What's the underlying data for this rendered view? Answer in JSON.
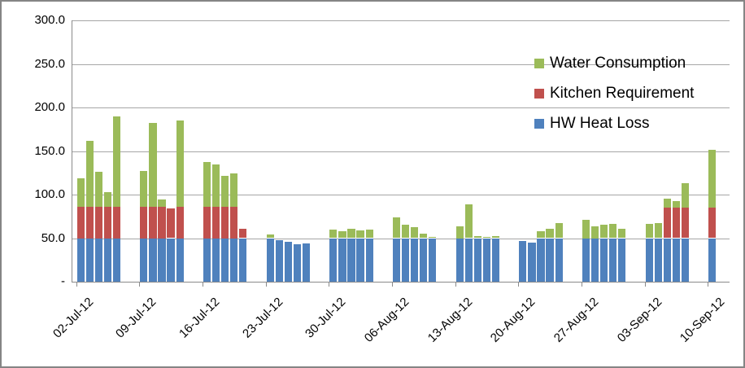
{
  "chart_data": {
    "type": "bar",
    "subtype": "stacked-vertical",
    "title": "",
    "xlabel": "",
    "ylabel": "",
    "y_axis": {
      "min": 0,
      "max": 300,
      "tick_step": 50,
      "tick_labels": [
        "300.0",
        "250.0",
        "200.0",
        "150.0",
        "100.0",
        "50.0",
        "-"
      ],
      "tick_values": [
        300,
        250,
        200,
        150,
        100,
        50,
        0
      ],
      "grid": true
    },
    "x_axis": {
      "tick_labels": [
        "02-Jul-12",
        "09-Jul-12",
        "16-Jul-12",
        "23-Jul-12",
        "30-Jul-12",
        "06-Aug-12",
        "13-Aug-12",
        "20-Aug-12",
        "27-Aug-12",
        "03-Sep-12",
        "10-Sep-12"
      ],
      "days_per_tick": 7,
      "note": "weekday bars only; weekend slots empty"
    },
    "legend": [
      {
        "label": "Water Consumption",
        "color": "#9BBB59",
        "key": "water"
      },
      {
        "label": "Kitchen Requirement",
        "color": "#C0504D",
        "key": "kitchen"
      },
      {
        "label": "HW Heat Loss",
        "color": "#4F81BD",
        "key": "hw"
      }
    ],
    "legend_position": "inside-top-right",
    "stack_order_bottom_to_top": [
      "hw",
      "kitchen",
      "water"
    ],
    "points": [
      {
        "slot": 0,
        "date": "02-Jul-12",
        "hw": 50,
        "kitchen": 36,
        "water": 33
      },
      {
        "slot": 1,
        "date": "03-Jul-12",
        "hw": 50,
        "kitchen": 36,
        "water": 76
      },
      {
        "slot": 2,
        "date": "04-Jul-12",
        "hw": 50,
        "kitchen": 36,
        "water": 40
      },
      {
        "slot": 3,
        "date": "05-Jul-12",
        "hw": 50,
        "kitchen": 36,
        "water": 17
      },
      {
        "slot": 4,
        "date": "06-Jul-12",
        "hw": 50,
        "kitchen": 36,
        "water": 104
      },
      {
        "slot": 7,
        "date": "09-Jul-12",
        "hw": 50,
        "kitchen": 36,
        "water": 41
      },
      {
        "slot": 8,
        "date": "10-Jul-12",
        "hw": 50,
        "kitchen": 36,
        "water": 96
      },
      {
        "slot": 9,
        "date": "11-Jul-12",
        "hw": 50,
        "kitchen": 36,
        "water": 8
      },
      {
        "slot": 10,
        "date": "12-Jul-12",
        "hw": 50,
        "kitchen": 34,
        "water": 0
      },
      {
        "slot": 11,
        "date": "13-Jul-12",
        "hw": 50,
        "kitchen": 36,
        "water": 99
      },
      {
        "slot": 14,
        "date": "16-Jul-12",
        "hw": 50,
        "kitchen": 36,
        "water": 51
      },
      {
        "slot": 15,
        "date": "17-Jul-12",
        "hw": 50,
        "kitchen": 36,
        "water": 49
      },
      {
        "slot": 16,
        "date": "18-Jul-12",
        "hw": 50,
        "kitchen": 36,
        "water": 36
      },
      {
        "slot": 17,
        "date": "19-Jul-12",
        "hw": 50,
        "kitchen": 36,
        "water": 38
      },
      {
        "slot": 18,
        "date": "20-Jul-12",
        "hw": 50,
        "kitchen": 11,
        "water": 0
      },
      {
        "slot": 21,
        "date": "23-Jul-12",
        "hw": 50,
        "kitchen": 0,
        "water": 4
      },
      {
        "slot": 22,
        "date": "24-Jul-12",
        "hw": 48,
        "kitchen": 0,
        "water": 0
      },
      {
        "slot": 23,
        "date": "25-Jul-12",
        "hw": 46,
        "kitchen": 0,
        "water": 0
      },
      {
        "slot": 24,
        "date": "26-Jul-12",
        "hw": 43.5,
        "kitchen": 0,
        "water": 0
      },
      {
        "slot": 25,
        "date": "27-Jul-12",
        "hw": 44,
        "kitchen": 0,
        "water": 0
      },
      {
        "slot": 28,
        "date": "30-Jul-12",
        "hw": 50,
        "kitchen": 0,
        "water": 10
      },
      {
        "slot": 29,
        "date": "31-Jul-12",
        "hw": 50,
        "kitchen": 0,
        "water": 8
      },
      {
        "slot": 30,
        "date": "01-Aug-12",
        "hw": 50,
        "kitchen": 0,
        "water": 11
      },
      {
        "slot": 31,
        "date": "02-Aug-12",
        "hw": 50,
        "kitchen": 0,
        "water": 9
      },
      {
        "slot": 32,
        "date": "03-Aug-12",
        "hw": 50,
        "kitchen": 0,
        "water": 10
      },
      {
        "slot": 35,
        "date": "06-Aug-12",
        "hw": 50,
        "kitchen": 0,
        "water": 24
      },
      {
        "slot": 36,
        "date": "07-Aug-12",
        "hw": 50,
        "kitchen": 0,
        "water": 15
      },
      {
        "slot": 37,
        "date": "08-Aug-12",
        "hw": 50,
        "kitchen": 0,
        "water": 13
      },
      {
        "slot": 38,
        "date": "09-Aug-12",
        "hw": 50,
        "kitchen": 0,
        "water": 5
      },
      {
        "slot": 39,
        "date": "10-Aug-12",
        "hw": 50,
        "kitchen": 0,
        "water": 1.5
      },
      {
        "slot": 42,
        "date": "13-Aug-12",
        "hw": 50,
        "kitchen": 0,
        "water": 14
      },
      {
        "slot": 43,
        "date": "14-Aug-12",
        "hw": 50,
        "kitchen": 0,
        "water": 39
      },
      {
        "slot": 44,
        "date": "15-Aug-12",
        "hw": 50,
        "kitchen": 0,
        "water": 2.5
      },
      {
        "slot": 45,
        "date": "16-Aug-12",
        "hw": 50,
        "kitchen": 0,
        "water": 1
      },
      {
        "slot": 46,
        "date": "17-Aug-12",
        "hw": 50,
        "kitchen": 0,
        "water": 2
      },
      {
        "slot": 49,
        "date": "20-Aug-12",
        "hw": 46.5,
        "kitchen": 0,
        "water": 0
      },
      {
        "slot": 50,
        "date": "21-Aug-12",
        "hw": 45,
        "kitchen": 0,
        "water": 0
      },
      {
        "slot": 51,
        "date": "22-Aug-12",
        "hw": 50,
        "kitchen": 0,
        "water": 8
      },
      {
        "slot": 52,
        "date": "23-Aug-12",
        "hw": 50,
        "kitchen": 0,
        "water": 11
      },
      {
        "slot": 53,
        "date": "24-Aug-12",
        "hw": 50,
        "kitchen": 0,
        "water": 17
      },
      {
        "slot": 56,
        "date": "27-Aug-12",
        "hw": 50,
        "kitchen": 0,
        "water": 21
      },
      {
        "slot": 57,
        "date": "28-Aug-12",
        "hw": 50,
        "kitchen": 0,
        "water": 14
      },
      {
        "slot": 58,
        "date": "29-Aug-12",
        "hw": 50,
        "kitchen": 0,
        "water": 15
      },
      {
        "slot": 59,
        "date": "30-Aug-12",
        "hw": 50,
        "kitchen": 0,
        "water": 16
      },
      {
        "slot": 60,
        "date": "31-Aug-12",
        "hw": 50,
        "kitchen": 0,
        "water": 11
      },
      {
        "slot": 63,
        "date": "03-Sep-12",
        "hw": 50,
        "kitchen": 0,
        "water": 16
      },
      {
        "slot": 64,
        "date": "04-Sep-12",
        "hw": 50,
        "kitchen": 0,
        "water": 17
      },
      {
        "slot": 65,
        "date": "05-Sep-12",
        "hw": 50,
        "kitchen": 35,
        "water": 10
      },
      {
        "slot": 66,
        "date": "06-Sep-12",
        "hw": 50,
        "kitchen": 35,
        "water": 8
      },
      {
        "slot": 67,
        "date": "07-Sep-12",
        "hw": 50,
        "kitchen": 35,
        "water": 28
      },
      {
        "slot": 70,
        "date": "10-Sep-12",
        "hw": 50,
        "kitchen": 35,
        "water": 66
      }
    ]
  }
}
